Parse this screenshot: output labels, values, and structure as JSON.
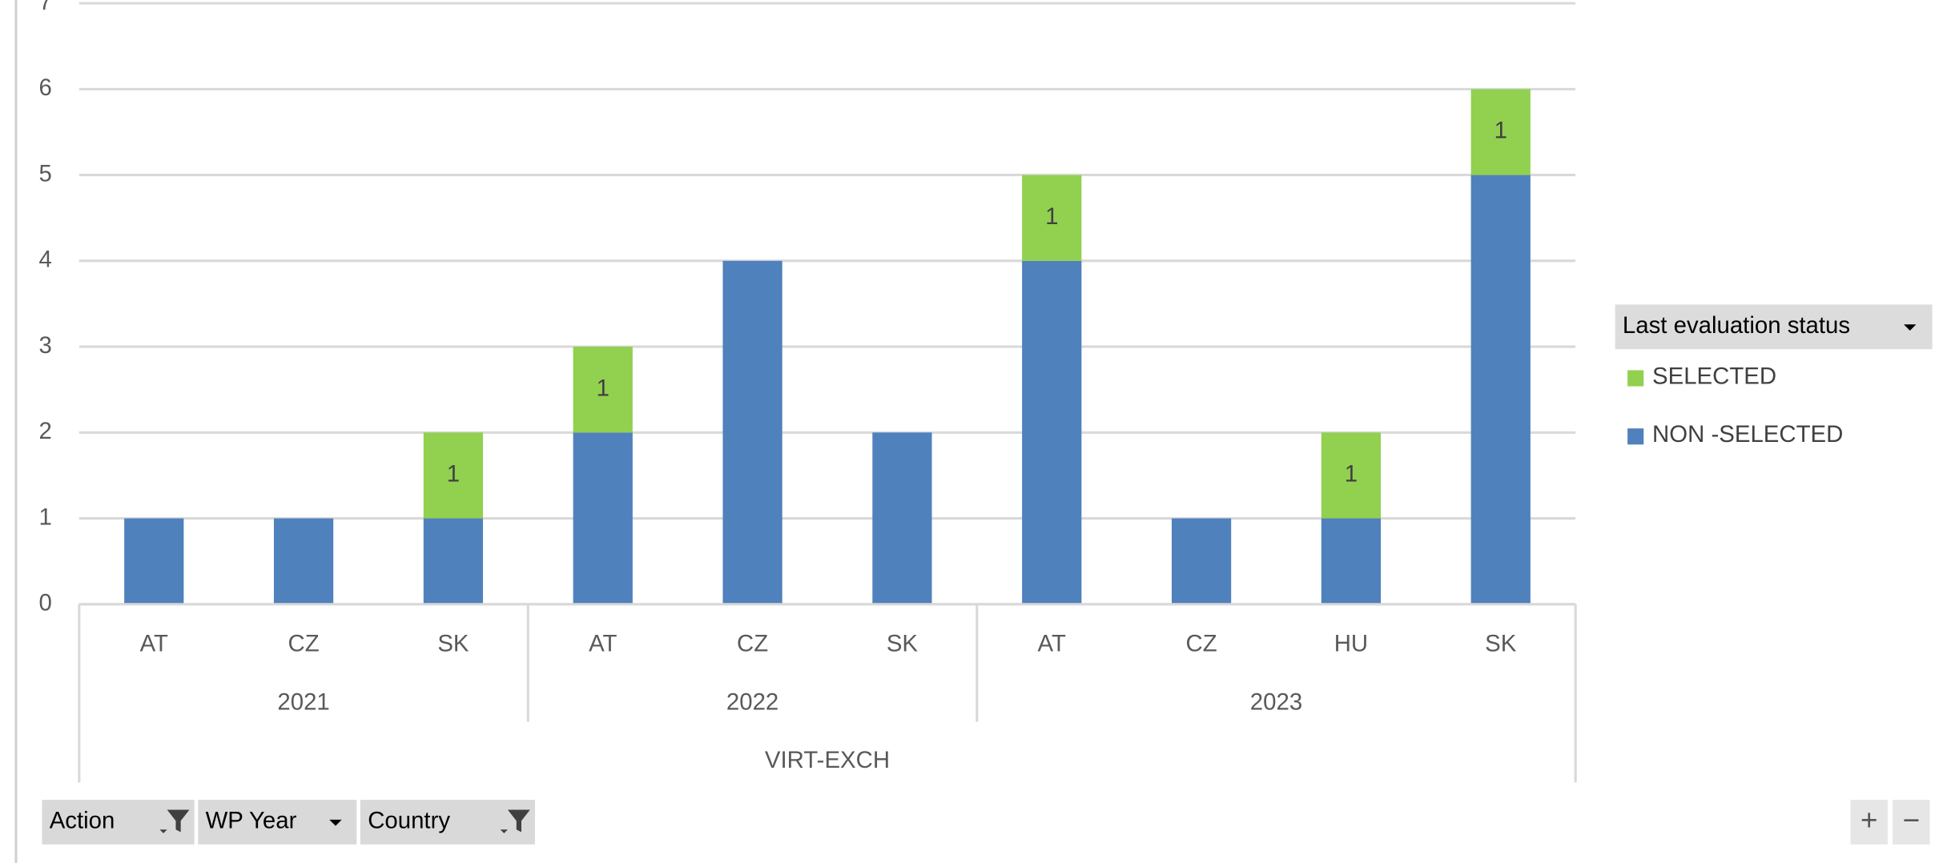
{
  "chart_data": {
    "type": "bar",
    "stacked": true,
    "categories": [
      "AT",
      "CZ",
      "SK",
      "AT",
      "CZ",
      "SK",
      "AT",
      "CZ",
      "HU",
      "SK"
    ],
    "groups": [
      {
        "label": "2021",
        "size": 3
      },
      {
        "label": "2022",
        "size": 3
      },
      {
        "label": "2023",
        "size": 4
      }
    ],
    "outer_group": "VIRT-EXCH",
    "series": [
      {
        "name": "NON -SELECTED",
        "color": "#4f81bd",
        "values": [
          1,
          1,
          1,
          2,
          4,
          2,
          4,
          1,
          1,
          5
        ],
        "data_labels": false
      },
      {
        "name": "SELECTED",
        "color": "#92d050",
        "values": [
          null,
          null,
          1,
          1,
          null,
          null,
          1,
          null,
          1,
          1
        ],
        "data_labels": true
      }
    ],
    "ylim": [
      0,
      7
    ],
    "yticks": [
      0,
      1,
      2,
      3,
      4,
      5,
      6,
      7
    ],
    "grid": true,
    "legend_title": "Last evaluation status",
    "legend": "right"
  },
  "filters": [
    "Action",
    "WP Year",
    "Country"
  ],
  "zoom": [
    "+",
    "−"
  ]
}
